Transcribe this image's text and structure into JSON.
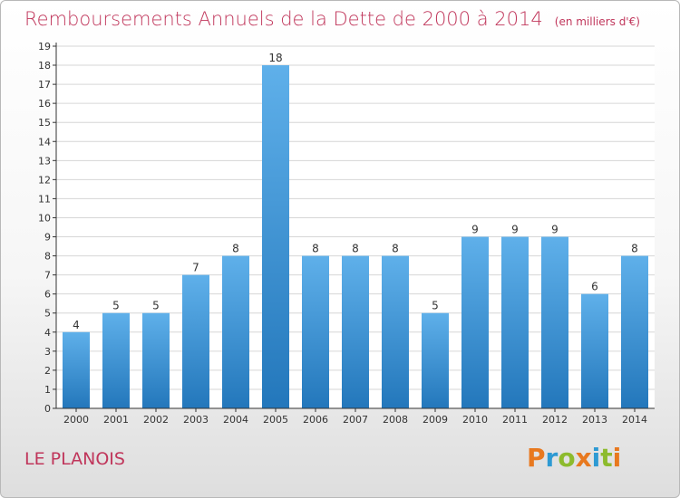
{
  "title": "Remboursements Annuels de la Dette de 2000 à 2014",
  "subtitle": "(en milliers d'€)",
  "commune": "LE PLANOIS",
  "logo": {
    "text": "Proxiti",
    "letters": [
      {
        "char": "P",
        "color": "#e8791f"
      },
      {
        "char": "r",
        "color": "#2e9ad3"
      },
      {
        "char": "o",
        "color": "#8dbb2d"
      },
      {
        "char": "x",
        "color": "#e8791f"
      },
      {
        "char": "i",
        "color": "#2e9ad3"
      },
      {
        "char": "t",
        "color": "#8dbb2d"
      },
      {
        "char": "i",
        "color": "#e8791f"
      }
    ]
  },
  "colors": {
    "accent": "#c0365b",
    "bar_top": "#5fb0ea",
    "bar_bottom": "#2377bb",
    "grid": "#d6d6d6",
    "axis": "#333333"
  },
  "chart_data": {
    "type": "bar",
    "categories": [
      "2000",
      "2001",
      "2002",
      "2003",
      "2004",
      "2005",
      "2006",
      "2007",
      "2008",
      "2009",
      "2010",
      "2011",
      "2012",
      "2013",
      "2014"
    ],
    "values": [
      4,
      5,
      5,
      7,
      8,
      18,
      8,
      8,
      8,
      5,
      9,
      9,
      9,
      6,
      8
    ],
    "ylim": [
      0,
      19
    ],
    "yticks": [
      0,
      1,
      2,
      3,
      4,
      5,
      6,
      7,
      8,
      9,
      10,
      11,
      12,
      13,
      14,
      15,
      16,
      17,
      18,
      19
    ],
    "grid": true,
    "legend": "none"
  }
}
